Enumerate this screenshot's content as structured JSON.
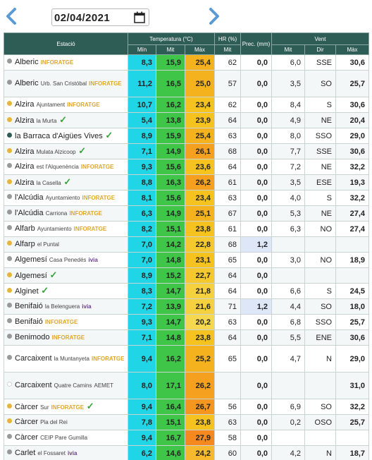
{
  "date": "02/04/2021",
  "colors": {
    "header": "#2e5d56",
    "min": "#20d6e6",
    "mit": "#3fc548",
    "precip": "#dde7f7",
    "arrow": "#5b9bd5"
  },
  "headers": {
    "estacio": "Estació",
    "temperatura": "Temperatura (°C)",
    "hr": "HR (%)",
    "prec": "Prec. (mm)",
    "vent": "Vent",
    "min": "Mín",
    "mit": "Mit",
    "max": "Màx",
    "hr_mit": "Mit",
    "vent_mit": "Mit",
    "dir": "Dir",
    "vent_max": "Màx"
  },
  "rows": [
    {
      "name": "Alberic",
      "sub": "",
      "net": "INFORATGE",
      "check": false,
      "dot": "#999",
      "tmin": "8,3",
      "tmit": "15,9",
      "tmax": "25,4",
      "maxc": "#f5b21f",
      "hr": "62",
      "prec": "0,0",
      "vmit": "6,0",
      "dir": "SSE",
      "vmax": "30,6",
      "tall": false
    },
    {
      "name": "Alberic",
      "sub": "Urb. San Cristóbal",
      "net": "INFORATGE",
      "check": false,
      "dot": "#999",
      "tmin": "11,2",
      "tmit": "16,5",
      "tmax": "25,0",
      "maxc": "#f5b21f",
      "hr": "57",
      "prec": "0,0",
      "vmit": "3,5",
      "dir": "SO",
      "vmax": "25,7",
      "tall": true
    },
    {
      "name": "Alzira",
      "sub": "Ajuntament",
      "net": "INFORATGE",
      "check": false,
      "dot": "#e8b43a",
      "tmin": "10,7",
      "tmit": "16,2",
      "tmax": "23,4",
      "maxc": "#f5c21f",
      "hr": "62",
      "prec": "0,0",
      "vmit": "8,4",
      "dir": "S",
      "vmax": "30,6",
      "tall": false
    },
    {
      "name": "Alzira",
      "sub": "la Murta",
      "net": "",
      "check": true,
      "dot": "#e8b43a",
      "tmin": "5,4",
      "tmit": "13,8",
      "tmax": "23,9",
      "maxc": "#f5c21f",
      "hr": "64",
      "prec": "0,0",
      "vmit": "4,9",
      "dir": "NE",
      "vmax": "20,4",
      "tall": false
    },
    {
      "name": "la Barraca d'Aigües Vives",
      "sub": "",
      "net": "",
      "check": true,
      "dot": "#2e5d56",
      "tmin": "8,9",
      "tmit": "15,9",
      "tmax": "25,4",
      "maxc": "#f5b21f",
      "hr": "63",
      "prec": "0,0",
      "vmit": "8,0",
      "dir": "SSO",
      "vmax": "29,0",
      "tall": false
    },
    {
      "name": "Alzira",
      "sub": "Mulata Alzicoop",
      "net": "",
      "check": true,
      "dot": "#e8b43a",
      "tmin": "7,1",
      "tmit": "14,9",
      "tmax": "26,1",
      "maxc": "#f5a01f",
      "hr": "68",
      "prec": "0,0",
      "vmit": "7,7",
      "dir": "SSE",
      "vmax": "30,6",
      "tall": false
    },
    {
      "name": "Alzira",
      "sub": "est l'Alquenència",
      "net": "INFORATGE",
      "check": false,
      "dot": "#999",
      "tmin": "9,3",
      "tmit": "15,6",
      "tmax": "23,6",
      "maxc": "#f5c21f",
      "hr": "64",
      "prec": "0,0",
      "vmit": "7,2",
      "dir": "NE",
      "vmax": "32,2",
      "tall": false
    },
    {
      "name": "Alzira",
      "sub": "la Casella",
      "net": "",
      "check": true,
      "dot": "#e8b43a",
      "tmin": "8,8",
      "tmit": "16,3",
      "tmax": "26,2",
      "maxc": "#f5a01f",
      "hr": "61",
      "prec": "0,0",
      "vmit": "3,5",
      "dir": "ESE",
      "vmax": "19,3",
      "tall": false
    },
    {
      "name": "l'Alcúdia",
      "sub": "Ayuntamiento",
      "net": "INFORATGE",
      "check": false,
      "dot": "#999",
      "tmin": "8,1",
      "tmit": "15,6",
      "tmax": "23,4",
      "maxc": "#f5c21f",
      "hr": "63",
      "prec": "0,0",
      "vmit": "4,0",
      "dir": "S",
      "vmax": "32,2",
      "tall": false
    },
    {
      "name": "l'Alcúdia",
      "sub": "Carriona",
      "net": "INFORATGE",
      "check": false,
      "dot": "#999",
      "tmin": "6,3",
      "tmit": "14,9",
      "tmax": "25,1",
      "maxc": "#f5b21f",
      "hr": "67",
      "prec": "0,0",
      "vmit": "5,3",
      "dir": "NE",
      "vmax": "27,4",
      "tall": false
    },
    {
      "name": "Alfarb",
      "sub": "Ayuntamiento",
      "net": "INFORATGE",
      "check": false,
      "dot": "#999",
      "tmin": "8,2",
      "tmit": "15,1",
      "tmax": "23,8",
      "maxc": "#f5c21f",
      "hr": "61",
      "prec": "0,0",
      "vmit": "6,3",
      "dir": "NO",
      "vmax": "27,4",
      "tall": false
    },
    {
      "name": "Alfarp",
      "sub": "el Puntal",
      "net": "",
      "check": false,
      "dot": "#e8b43a",
      "tmin": "7,0",
      "tmit": "14,2",
      "tmax": "22,8",
      "maxc": "#f5c82f",
      "hr": "68",
      "prec": "1,2",
      "vmit": "",
      "dir": "",
      "vmax": "",
      "tall": false,
      "precip": true
    },
    {
      "name": "Algemesí",
      "sub": "Casa Penedés",
      "net": "ivia",
      "check": false,
      "dot": "#999",
      "tmin": "7,0",
      "tmit": "14,8",
      "tmax": "23,1",
      "maxc": "#f5c21f",
      "hr": "65",
      "prec": "0,0",
      "vmit": "3,0",
      "dir": "NO",
      "vmax": "18,9",
      "tall": false
    },
    {
      "name": "Algemesí",
      "sub": "",
      "net": "",
      "check": true,
      "dot": "#e8b43a",
      "tmin": "8,9",
      "tmit": "15,2",
      "tmax": "22,7",
      "maxc": "#f5c82f",
      "hr": "64",
      "prec": "0,0",
      "vmit": "",
      "dir": "",
      "vmax": "",
      "tall": false
    },
    {
      "name": "Alginet",
      "sub": "",
      "net": "",
      "check": true,
      "dot": "#e8b43a",
      "tmin": "8,3",
      "tmit": "14,7",
      "tmax": "21,8",
      "maxc": "#f5d03f",
      "hr": "64",
      "prec": "0,0",
      "vmit": "6,6",
      "dir": "S",
      "vmax": "24,5",
      "tall": false
    },
    {
      "name": "Benifaió",
      "sub": "la Belenguera",
      "net": "ivia",
      "check": false,
      "dot": "#999",
      "tmin": "7,2",
      "tmit": "13,9",
      "tmax": "21,6",
      "maxc": "#f5d03f",
      "hr": "71",
      "prec": "1,2",
      "vmit": "4,4",
      "dir": "SO",
      "vmax": "18,0",
      "tall": false,
      "precip": true
    },
    {
      "name": "Benifaió",
      "sub": "",
      "net": "INFORATGE",
      "check": false,
      "dot": "#999",
      "tmin": "9,3",
      "tmit": "14,7",
      "tmax": "20,2",
      "maxc": "#f5d84f",
      "hr": "63",
      "prec": "0,0",
      "vmit": "6,8",
      "dir": "SSO",
      "vmax": "25,7",
      "tall": false
    },
    {
      "name": "Benimodo",
      "sub": "",
      "net": "INFORATGE",
      "check": false,
      "dot": "#999",
      "tmin": "7,1",
      "tmit": "14,8",
      "tmax": "23,8",
      "maxc": "#f5c21f",
      "hr": "64",
      "prec": "0,0",
      "vmit": "5,5",
      "dir": "ENE",
      "vmax": "30,6",
      "tall": false
    },
    {
      "name": "Carcaixent",
      "sub": "la Muntanyeta",
      "net": "INFORATGE",
      "check": false,
      "dot": "#999",
      "tmin": "9,4",
      "tmit": "16,2",
      "tmax": "25,2",
      "maxc": "#f5b21f",
      "hr": "65",
      "prec": "0,0",
      "vmit": "4,7",
      "dir": "N",
      "vmax": "29,0",
      "tall": true
    },
    {
      "name": "Carcaixent",
      "sub": "Quatre Camins",
      "net": "AEMET",
      "check": false,
      "dot": "#fff",
      "tmin": "8,0",
      "tmit": "17,1",
      "tmax": "26,2",
      "maxc": "#f5a01f",
      "hr": "",
      "prec": "0,0",
      "vmit": "",
      "dir": "",
      "vmax": "31,0",
      "tall": true,
      "aemet": true
    },
    {
      "name": "Càrcer",
      "sub": "Sur",
      "net": "INFORATGE",
      "check": true,
      "dot": "#e8b43a",
      "tmin": "9,4",
      "tmit": "16,4",
      "tmax": "26,7",
      "maxc": "#f5961f",
      "hr": "56",
      "prec": "0,0",
      "vmit": "6,9",
      "dir": "SO",
      "vmax": "32,2",
      "tall": false
    },
    {
      "name": "Càrcer",
      "sub": "Pla del Rei",
      "net": "",
      "check": false,
      "dot": "#e8b43a",
      "tmin": "7,8",
      "tmit": "15,1",
      "tmax": "23,8",
      "maxc": "#f5c21f",
      "hr": "63",
      "prec": "0,0",
      "vmit": "0,2",
      "dir": "OSO",
      "vmax": "25,7",
      "tall": false
    },
    {
      "name": "Càrcer",
      "sub": "CEIP Pare Gumilla",
      "net": "",
      "check": false,
      "dot": "#999",
      "tmin": "9,4",
      "tmit": "16,7",
      "tmax": "27,9",
      "maxc": "#f5881f",
      "hr": "58",
      "prec": "0,0",
      "vmit": "",
      "dir": "",
      "vmax": "",
      "tall": false
    },
    {
      "name": "Carlet",
      "sub": "el Fossaret",
      "net": "ivia",
      "check": false,
      "dot": "#999",
      "tmin": "6,2",
      "tmit": "14,6",
      "tmax": "24,2",
      "maxc": "#f5b82f",
      "hr": "60",
      "prec": "0,0",
      "vmit": "4,2",
      "dir": "N",
      "vmax": "18,7",
      "tall": false
    }
  ]
}
